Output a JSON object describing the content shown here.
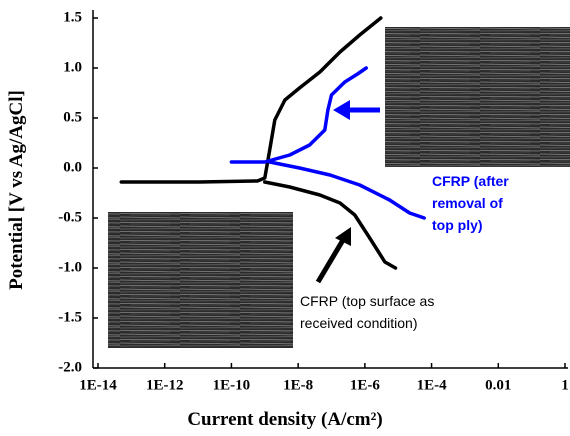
{
  "chart_data": {
    "type": "line",
    "xlabel": "Current density (A/cm²)",
    "ylabel": "Potential [V vs Ag/AgCl]",
    "xscale": "log",
    "xlim": [
      1e-14,
      1
    ],
    "xticks": [
      {
        "value": 1e-14,
        "label": "1E-14"
      },
      {
        "value": 1e-12,
        "label": "1E-12"
      },
      {
        "value": 1e-10,
        "label": "1E-10"
      },
      {
        "value": 1e-08,
        "label": "1E-8"
      },
      {
        "value": 1e-06,
        "label": "1E-6"
      },
      {
        "value": 0.0001,
        "label": "1E-4"
      },
      0.01,
      1
    ],
    "ylim": [
      -2,
      1.5
    ],
    "yticks": [
      {
        "value": -2,
        "label": "-2.0"
      },
      -1.5,
      {
        "value": -1,
        "label": "-1.0"
      },
      -0.5,
      {
        "value": 0,
        "label": "0.0"
      },
      0.5,
      {
        "value": 1,
        "label": "1.0"
      },
      1.5
    ],
    "series": [
      {
        "name": "CFRP (top surface as received condition)",
        "color": "#000000",
        "x": [
          5e-14,
          1.1e-11,
          6e-10,
          1e-09,
          1.4e-09,
          2e-09,
          4e-09,
          1.1e-08,
          4.5e-08,
          1.8e-07,
          7e-07,
          3e-06,
          null,
          1e-09,
          5.6e-09,
          4.5e-08,
          1.8e-07,
          5e-07,
          1.4e-06,
          4e-06,
          8.3e-06
        ],
        "values": [
          -0.14,
          -0.14,
          -0.13,
          -0.1,
          0.18,
          0.48,
          0.68,
          0.8,
          0.96,
          1.16,
          1.33,
          1.5,
          null,
          -0.14,
          -0.19,
          -0.27,
          -0.35,
          -0.47,
          -0.7,
          -0.94,
          -1.0
        ]
      },
      {
        "name": "CFRP (after removal of top ply)",
        "color": "#0000ff",
        "x": [
          1e-10,
          1e-09,
          5.6e-09,
          2.2e-08,
          6.3e-08,
          7.8e-08,
          1e-07,
          2.5e-07,
          6e-07,
          1.1e-06,
          null,
          1.4e-09,
          1.1e-08,
          9e-08,
          7e-07,
          5.5e-06,
          2.2e-05,
          6e-05
        ],
        "values": [
          0.06,
          0.06,
          0.13,
          0.23,
          0.38,
          0.58,
          0.73,
          0.86,
          0.94,
          1.0,
          null,
          0.06,
          0.0,
          -0.07,
          -0.17,
          -0.32,
          -0.45,
          -0.5
        ]
      }
    ]
  }
}
